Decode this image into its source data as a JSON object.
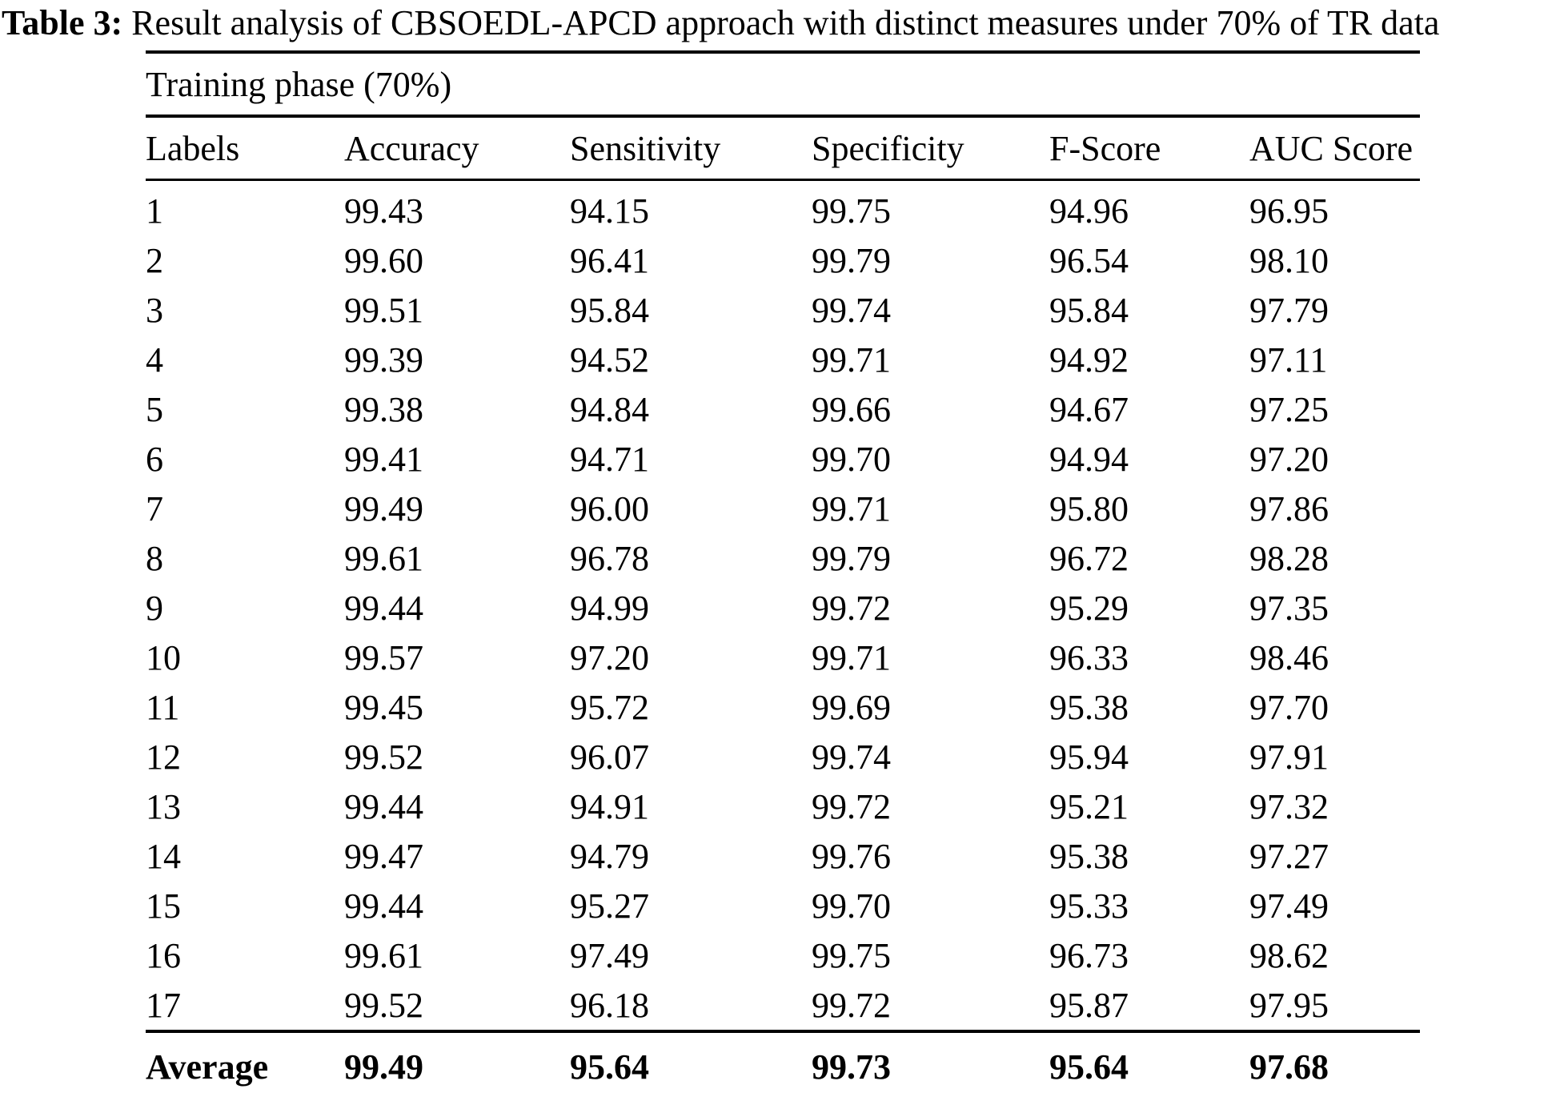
{
  "caption": {
    "label": "Table 3:",
    "text": " Result analysis of CBSOEDL-APCD approach with distinct measures under 70% of TR data"
  },
  "table": {
    "group_header": "Training phase (70%)",
    "columns": [
      "Labels",
      "Accuracy",
      "Sensitivity",
      "Specificity",
      "F-Score",
      "AUC Score"
    ],
    "rows": [
      {
        "label": "1",
        "values": [
          "99.43",
          "94.15",
          "99.75",
          "94.96",
          "96.95"
        ]
      },
      {
        "label": "2",
        "values": [
          "99.60",
          "96.41",
          "99.79",
          "96.54",
          "98.10"
        ]
      },
      {
        "label": "3",
        "values": [
          "99.51",
          "95.84",
          "99.74",
          "95.84",
          "97.79"
        ]
      },
      {
        "label": "4",
        "values": [
          "99.39",
          "94.52",
          "99.71",
          "94.92",
          "97.11"
        ]
      },
      {
        "label": "5",
        "values": [
          "99.38",
          "94.84",
          "99.66",
          "94.67",
          "97.25"
        ]
      },
      {
        "label": "6",
        "values": [
          "99.41",
          "94.71",
          "99.70",
          "94.94",
          "97.20"
        ]
      },
      {
        "label": "7",
        "values": [
          "99.49",
          "96.00",
          "99.71",
          "95.80",
          "97.86"
        ]
      },
      {
        "label": "8",
        "values": [
          "99.61",
          "96.78",
          "99.79",
          "96.72",
          "98.28"
        ]
      },
      {
        "label": "9",
        "values": [
          "99.44",
          "94.99",
          "99.72",
          "95.29",
          "97.35"
        ]
      },
      {
        "label": "10",
        "values": [
          "99.57",
          "97.20",
          "99.71",
          "96.33",
          "98.46"
        ]
      },
      {
        "label": "11",
        "values": [
          "99.45",
          "95.72",
          "99.69",
          "95.38",
          "97.70"
        ]
      },
      {
        "label": "12",
        "values": [
          "99.52",
          "96.07",
          "99.74",
          "95.94",
          "97.91"
        ]
      },
      {
        "label": "13",
        "values": [
          "99.44",
          "94.91",
          "99.72",
          "95.21",
          "97.32"
        ]
      },
      {
        "label": "14",
        "values": [
          "99.47",
          "94.79",
          "99.76",
          "95.38",
          "97.27"
        ]
      },
      {
        "label": "15",
        "values": [
          "99.44",
          "95.27",
          "99.70",
          "95.33",
          "97.49"
        ]
      },
      {
        "label": "16",
        "values": [
          "99.61",
          "97.49",
          "99.75",
          "96.73",
          "98.62"
        ]
      },
      {
        "label": "17",
        "values": [
          "99.52",
          "96.18",
          "99.72",
          "95.87",
          "97.95"
        ]
      }
    ],
    "average": {
      "label": "Average",
      "values": [
        "99.49",
        "95.64",
        "99.73",
        "95.64",
        "97.68"
      ]
    }
  },
  "chart_data": {
    "type": "table",
    "title": "Table 3: Result analysis of CBSOEDL-APCD approach with distinct measures under 70% of TR data",
    "group_header": "Training phase (70%)",
    "columns": [
      "Labels",
      "Accuracy",
      "Sensitivity",
      "Specificity",
      "F-Score",
      "AUC Score"
    ],
    "rows": [
      [
        1,
        99.43,
        94.15,
        99.75,
        94.96,
        96.95
      ],
      [
        2,
        99.6,
        96.41,
        99.79,
        96.54,
        98.1
      ],
      [
        3,
        99.51,
        95.84,
        99.74,
        95.84,
        97.79
      ],
      [
        4,
        99.39,
        94.52,
        99.71,
        94.92,
        97.11
      ],
      [
        5,
        99.38,
        94.84,
        99.66,
        94.67,
        97.25
      ],
      [
        6,
        99.41,
        94.71,
        99.7,
        94.94,
        97.2
      ],
      [
        7,
        99.49,
        96.0,
        99.71,
        95.8,
        97.86
      ],
      [
        8,
        99.61,
        96.78,
        99.79,
        96.72,
        98.28
      ],
      [
        9,
        99.44,
        94.99,
        99.72,
        95.29,
        97.35
      ],
      [
        10,
        99.57,
        97.2,
        99.71,
        96.33,
        98.46
      ],
      [
        11,
        99.45,
        95.72,
        99.69,
        95.38,
        97.7
      ],
      [
        12,
        99.52,
        96.07,
        99.74,
        95.94,
        97.91
      ],
      [
        13,
        99.44,
        94.91,
        99.72,
        95.21,
        97.32
      ],
      [
        14,
        99.47,
        94.79,
        99.76,
        95.38,
        97.27
      ],
      [
        15,
        99.44,
        95.27,
        99.7,
        95.33,
        97.49
      ],
      [
        16,
        99.61,
        97.49,
        99.75,
        96.73,
        98.62
      ],
      [
        17,
        99.52,
        96.18,
        99.72,
        95.87,
        97.95
      ],
      [
        "Average",
        99.49,
        95.64,
        99.73,
        95.64,
        97.68
      ]
    ]
  }
}
